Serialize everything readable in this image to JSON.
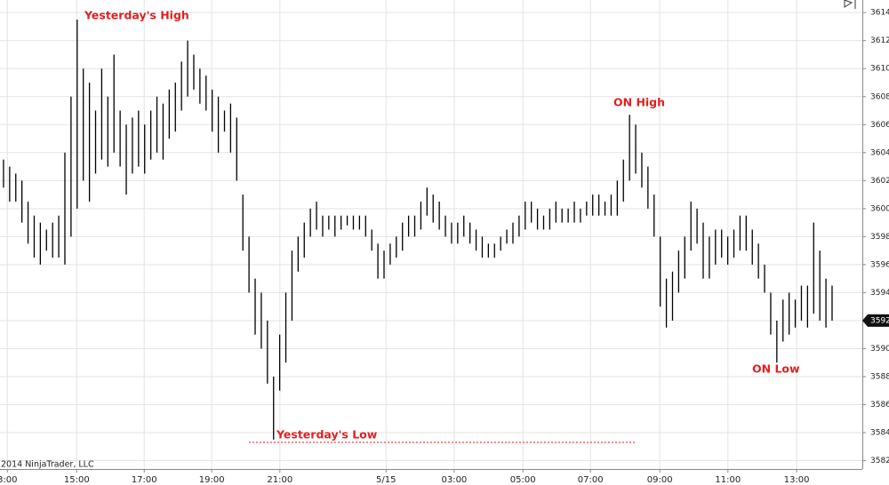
{
  "chart_data": {
    "type": "range_bar",
    "color": "#000000",
    "grid": true,
    "xlim": [
      -0.5,
      140
    ],
    "ylim": [
      3581.4,
      3614.9
    ],
    "yticks": [
      3582,
      3584,
      3586,
      3588,
      3590,
      3592,
      3594,
      3596,
      3598,
      3600,
      3602,
      3604,
      3606,
      3608,
      3610,
      3612,
      3614
    ],
    "xticks": [
      {
        "value": 0.7,
        "label": "3:00"
      },
      {
        "value": 12,
        "label": "15:00"
      },
      {
        "value": 23,
        "label": "17:00"
      },
      {
        "value": 34,
        "label": "19:00"
      },
      {
        "value": 45.1,
        "label": "21:00"
      },
      {
        "value": 62.4,
        "label": "5/15"
      },
      {
        "value": 73.5,
        "label": "03:00"
      },
      {
        "value": 84.7,
        "label": "05:00"
      },
      {
        "value": 95.7,
        "label": "07:00"
      },
      {
        "value": 107,
        "label": "09:00"
      },
      {
        "value": 118.1,
        "label": "11:00"
      },
      {
        "value": 129.3,
        "label": "13:00"
      }
    ],
    "high": [
      3603.5,
      3603,
      3602.5,
      3602,
      3600.5,
      3599.5,
      3599,
      3598.5,
      3599,
      3599.5,
      3604,
      3608,
      3613.5,
      3610,
      3609,
      3607,
      3610,
      3608,
      3611,
      3607,
      3606,
      3606.5,
      3607,
      3606,
      3607,
      3608,
      3607.5,
      3608.5,
      3609,
      3610.5,
      3612,
      3611,
      3610,
      3609.5,
      3608.5,
      3608,
      3607,
      3607.5,
      3606.5,
      3601,
      3598,
      3595,
      3594,
      3592,
      3588,
      3591,
      3594,
      3597,
      3598,
      3599,
      3600,
      3600.5,
      3599.5,
      3599.5,
      3599.5,
      3599.5,
      3599.5,
      3599.5,
      3599.5,
      3599.5,
      3598.5,
      3597.5,
      3597,
      3597.5,
      3598,
      3599,
      3599.5,
      3599.5,
      3600.5,
      3601.5,
      3601,
      3600.5,
      3599.5,
      3599,
      3599,
      3599.5,
      3599,
      3598.5,
      3598,
      3597.5,
      3597.5,
      3598,
      3598.5,
      3599,
      3599.5,
      3600.5,
      3600.5,
      3600,
      3599.5,
      3600,
      3600.5,
      3600,
      3600,
      3600.5,
      3600,
      3600.5,
      3601,
      3601,
      3600.5,
      3601,
      3602,
      3603.5,
      3606.7,
      3606,
      3604,
      3603,
      3601,
      3598,
      3595,
      3595.5,
      3597,
      3598,
      3600.5,
      3600,
      3599,
      3598,
      3598.5,
      3598.5,
      3598,
      3598.5,
      3599.5,
      3599.5,
      3598.5,
      3597.5,
      3596,
      3594,
      3592,
      3593.5,
      3594,
      3593.5,
      3594.5,
      3594.5,
      3599,
      3597,
      3595,
      3594.5
    ],
    "low": [
      3601.5,
      3600.5,
      3600.5,
      3599,
      3597.5,
      3596.5,
      3596,
      3597,
      3596.5,
      3596.5,
      3596,
      3598,
      3600,
      3602,
      3600.5,
      3602.5,
      3603.5,
      3603,
      3604,
      3603,
      3601,
      3602.5,
      3603,
      3602.5,
      3603.5,
      3604,
      3603.5,
      3605,
      3605.5,
      3607,
      3608,
      3608.5,
      3607.5,
      3607,
      3605.5,
      3604,
      3605.5,
      3604,
      3602,
      3597,
      3594,
      3591,
      3590,
      3587.5,
      3583.5,
      3587,
      3589,
      3592,
      3595.5,
      3596.5,
      3598,
      3598.5,
      3598,
      3598.5,
      3598,
      3598.5,
      3598.8,
      3598.5,
      3598.5,
      3598,
      3597,
      3595,
      3595,
      3596,
      3596.5,
      3597,
      3598,
      3598,
      3598.5,
      3599.5,
      3599,
      3598.5,
      3598,
      3597.5,
      3597.5,
      3598,
      3597.5,
      3597,
      3596.5,
      3596.5,
      3596.5,
      3597,
      3597.5,
      3597.5,
      3598,
      3598.5,
      3599,
      3598.5,
      3598.5,
      3598.5,
      3599,
      3599,
      3599,
      3599,
      3599,
      3599.5,
      3599.5,
      3599.5,
      3599.5,
      3599.5,
      3599.5,
      3600.5,
      3602,
      3602.5,
      3601.5,
      3600,
      3598,
      3593,
      3591.5,
      3592,
      3594,
      3595,
      3597,
      3597.5,
      3595,
      3595,
      3596,
      3596.5,
      3596,
      3596.5,
      3597,
      3597,
      3596,
      3595,
      3594,
      3591,
      3589,
      3590.5,
      3591,
      3591.5,
      3592,
      3591.5,
      3592.5,
      3592,
      3591.5,
      3592
    ],
    "hlines": [
      3583.3
    ],
    "last_price": 3592,
    "annotations": [
      "Yesterday's High",
      "Yesterday's Low",
      "ON High",
      "ON Low"
    ],
    "copyright": "2014 NinjaTrader, LLC"
  }
}
